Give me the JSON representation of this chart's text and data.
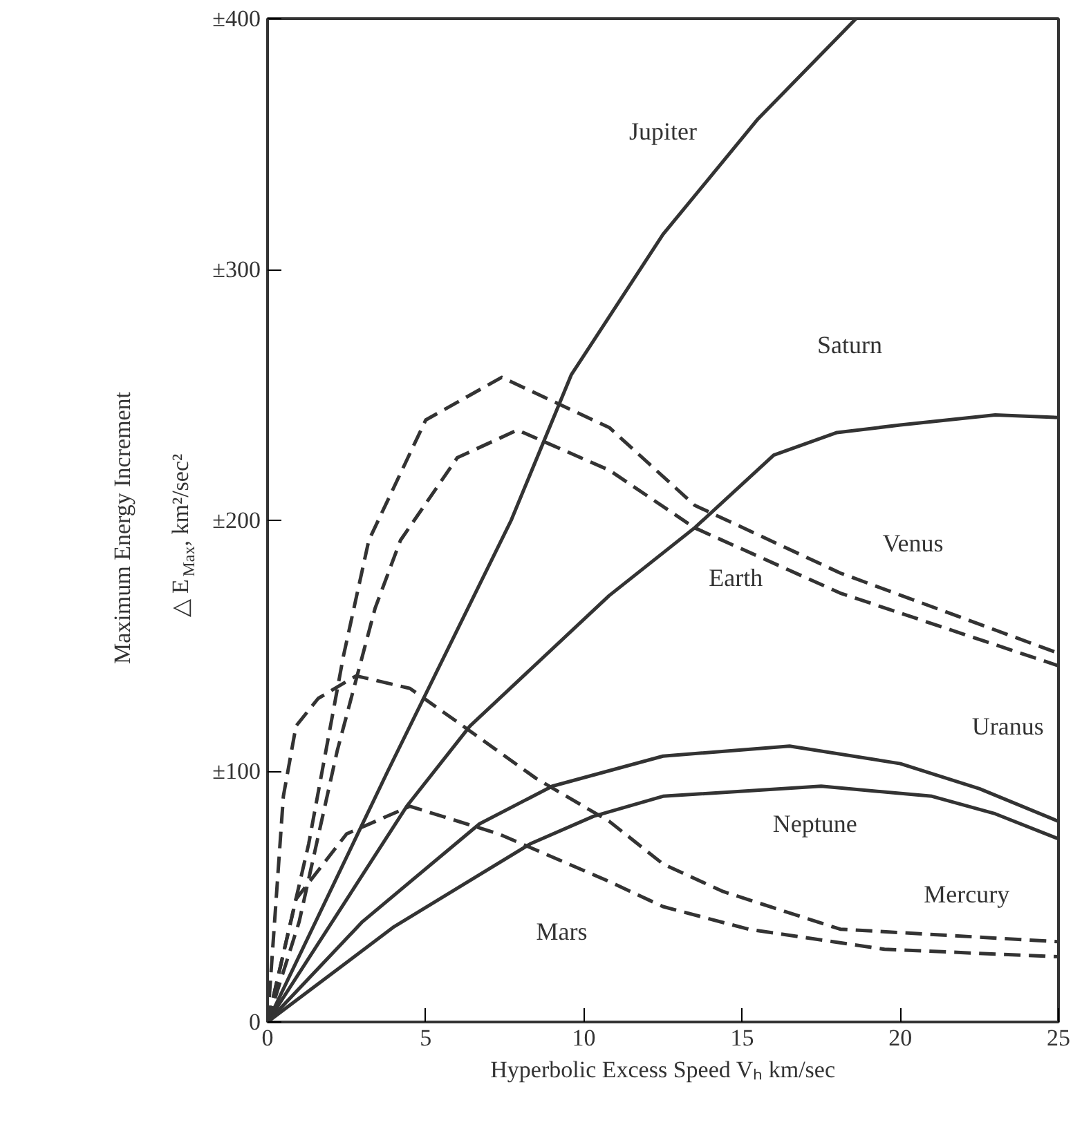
{
  "chart_data": {
    "type": "line",
    "xlabel": "Hyperbolic Excess Speed Vₕ km/sec",
    "ylabel": "Maximum Energy Increment\n△ E$_{Max}$, km²/sec²",
    "xlim": [
      0,
      25
    ],
    "xticks": [
      0,
      5,
      10,
      15,
      20,
      25
    ],
    "ylim": [
      0,
      400
    ],
    "yticks": [
      0,
      {
        "value": 100,
        "label": "±100"
      },
      {
        "value": 200,
        "label": "±200"
      },
      {
        "value": 300,
        "label": "±300"
      },
      {
        "value": 400,
        "label": "±400"
      }
    ],
    "grid": false,
    "legend": false,
    "marker": "none",
    "series": [
      {
        "name": "Jupiter",
        "color": "#333333",
        "line_style": "solid",
        "x": [
          0,
          3.8,
          7.7,
          9.6,
          12.5,
          15.5,
          18.6
        ],
        "values": [
          0,
          100,
          200,
          258,
          314,
          360,
          400
        ]
      },
      {
        "name": "Saturn",
        "color": "#333333",
        "line_style": "solid",
        "x": [
          0,
          4.4,
          6.4,
          10.8,
          13.5,
          16,
          18,
          20,
          23,
          25
        ],
        "values": [
          0,
          86,
          118,
          170,
          197,
          226,
          235,
          238,
          242,
          241
        ]
      },
      {
        "name": "Uranus",
        "color": "#333333",
        "line_style": "solid",
        "x": [
          0,
          3,
          6.7,
          9,
          12.5,
          16.5,
          20,
          22.5,
          25
        ],
        "values": [
          0,
          40,
          79,
          94,
          106,
          110,
          103,
          93,
          80
        ]
      },
      {
        "name": "Neptune",
        "color": "#333333",
        "line_style": "solid",
        "x": [
          0,
          4,
          8.3,
          10.3,
          12.5,
          17.5,
          21,
          23,
          25
        ],
        "values": [
          0,
          38,
          71,
          82,
          90,
          94,
          90,
          83,
          73
        ]
      },
      {
        "name": "Venus",
        "color": "#333333",
        "line_style": "dashed",
        "x": [
          0,
          1.3,
          2.4,
          3.2,
          5,
          7.4,
          10.8,
          13.5,
          18.1,
          25
        ],
        "values": [
          0,
          71,
          146,
          192,
          240,
          257,
          237,
          206,
          179,
          147
        ]
      },
      {
        "name": "Earth",
        "color": "#333333",
        "line_style": "dashed",
        "x": [
          0,
          1,
          2.2,
          3.4,
          4.2,
          6,
          7.9,
          10.8,
          13.5,
          18.1,
          25
        ],
        "values": [
          0,
          40,
          108,
          165,
          192,
          225,
          236,
          220,
          197,
          171,
          142
        ]
      },
      {
        "name": "Mercury",
        "color": "#333333",
        "line_style": "dashed",
        "x": [
          0,
          0.5,
          0.9,
          1.6,
          2.8,
          4.5,
          6.4,
          8.5,
          10.8,
          12.5,
          14.4,
          18.1,
          25
        ],
        "values": [
          0,
          90,
          118,
          129,
          138,
          133,
          116,
          97,
          80,
          63,
          52,
          37,
          32
        ]
      },
      {
        "name": "Mars",
        "color": "#333333",
        "line_style": "dashed",
        "x": [
          0,
          0.9,
          2.5,
          4.5,
          7.3,
          10.8,
          12.5,
          15.2,
          19.5,
          25
        ],
        "values": [
          0,
          49,
          75,
          86,
          75,
          56,
          46,
          37,
          29,
          26
        ]
      }
    ]
  }
}
